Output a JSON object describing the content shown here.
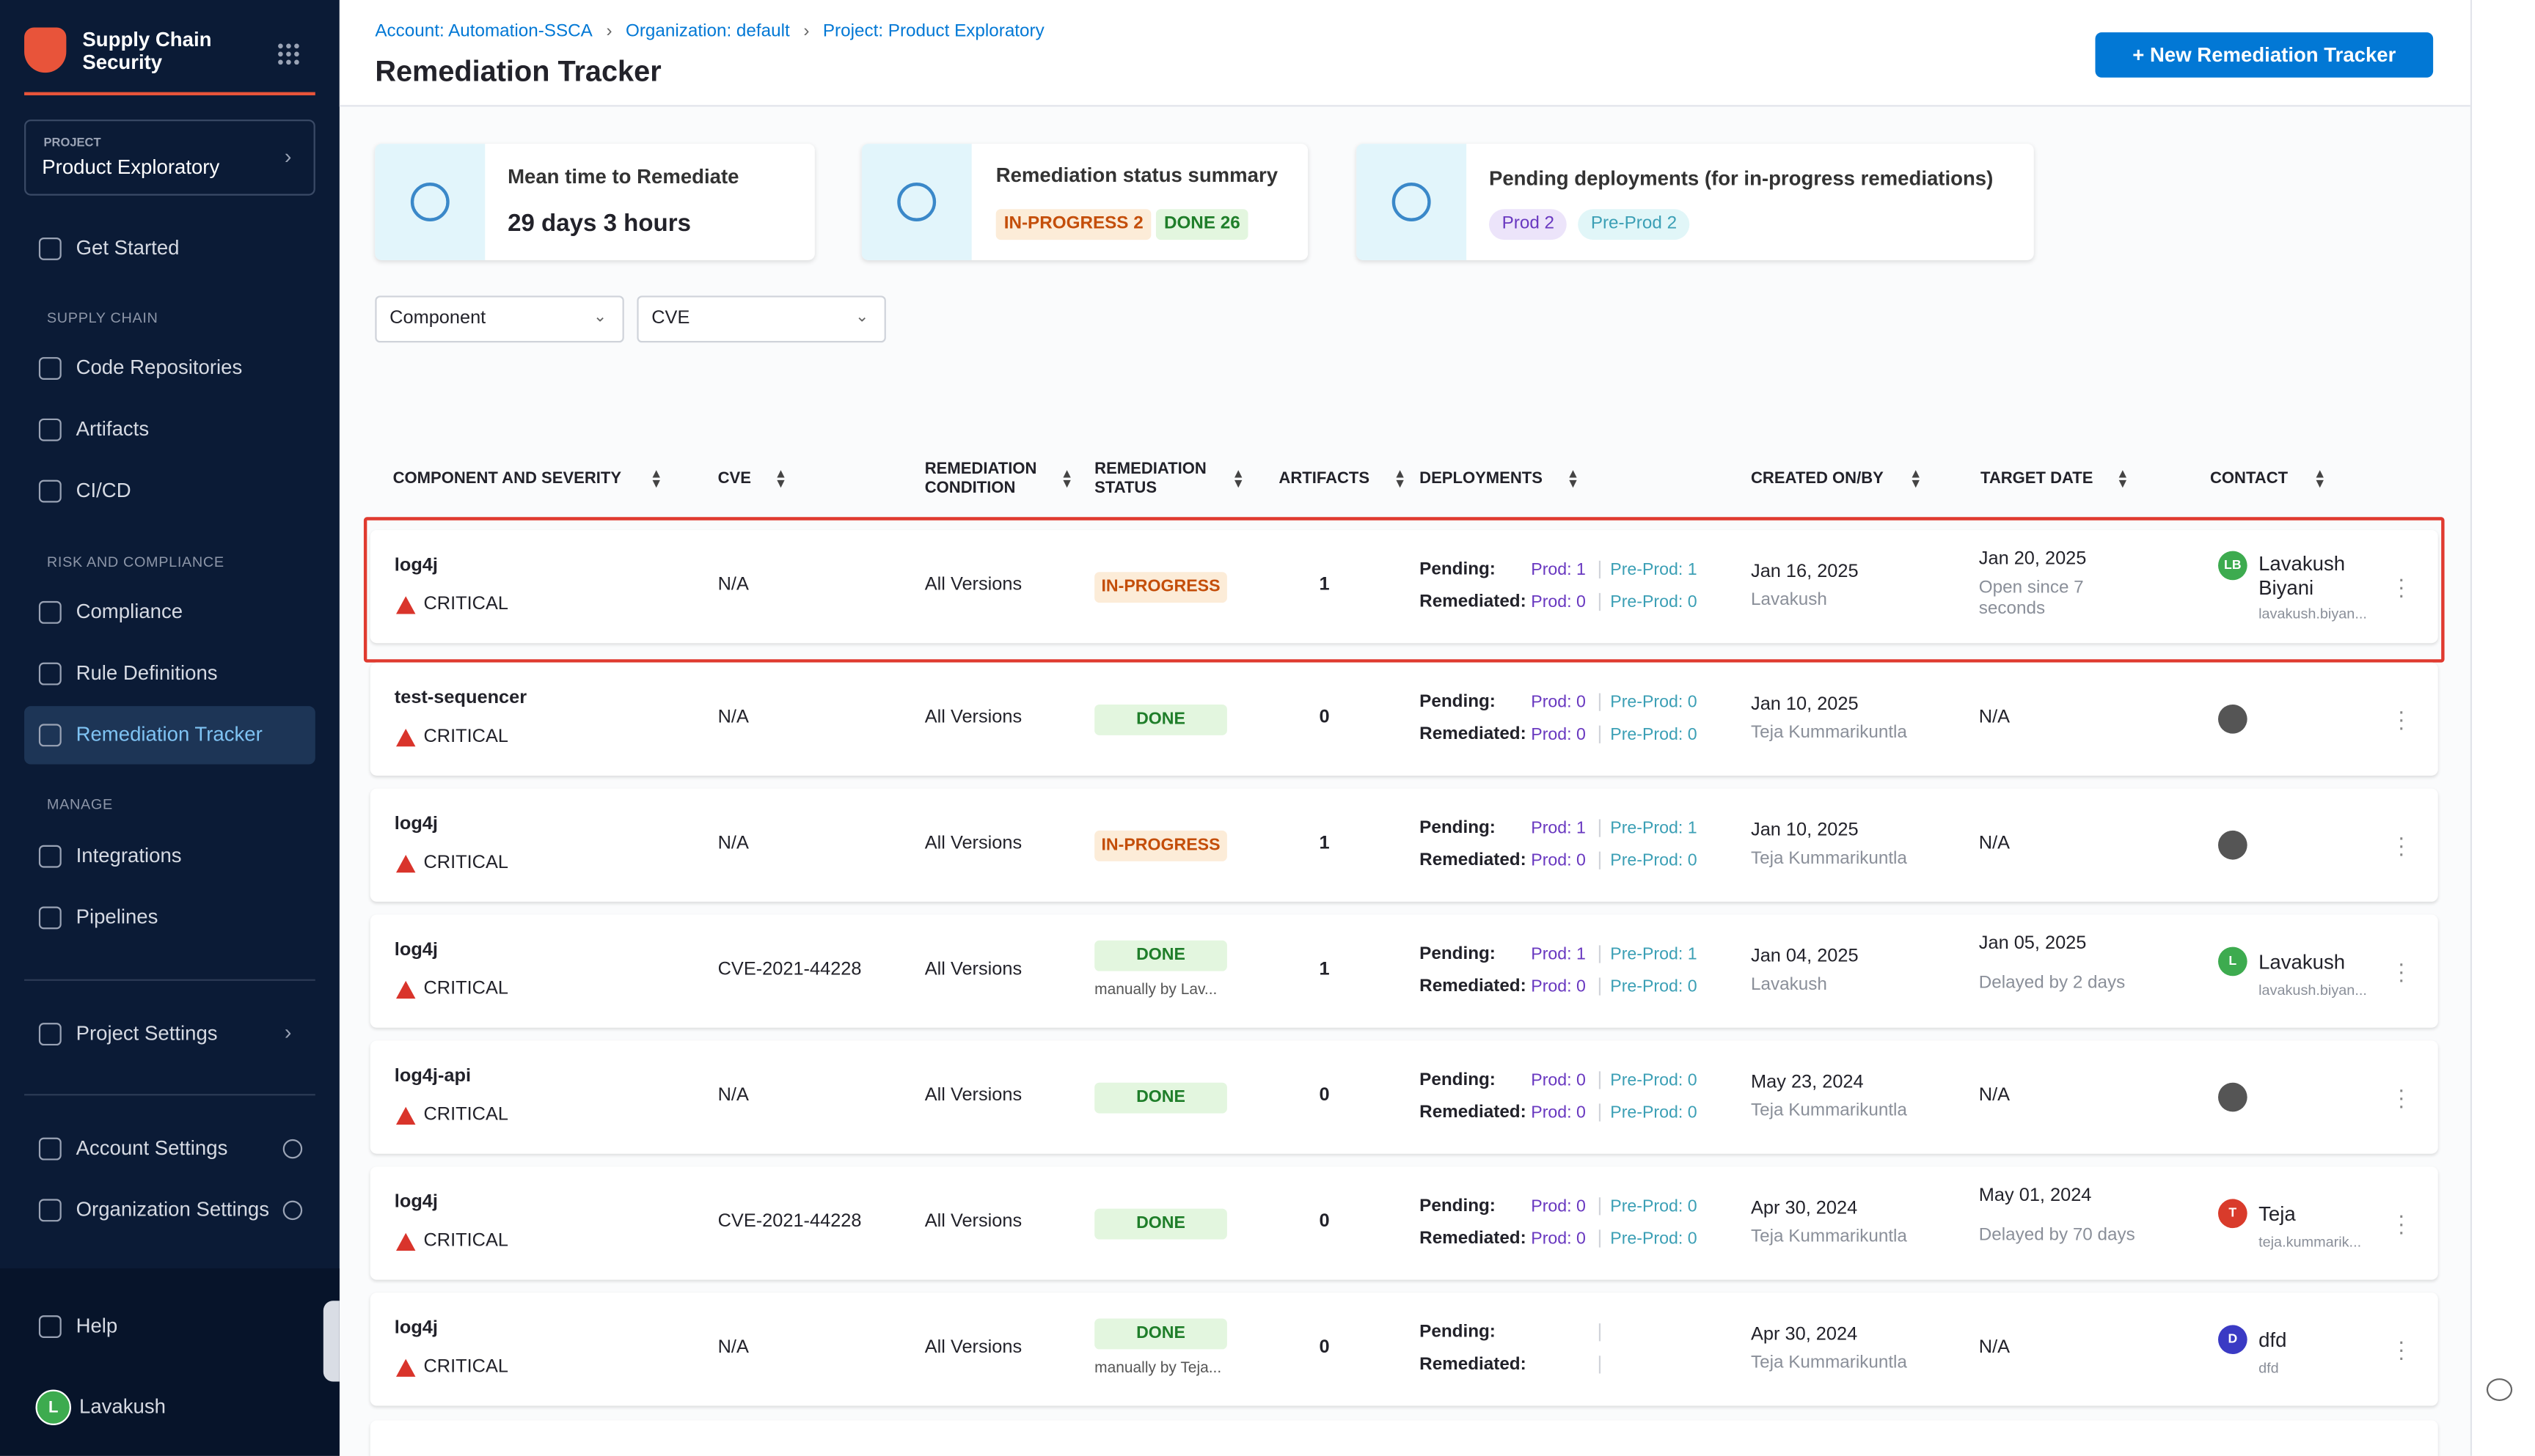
{
  "sidebar": {
    "brand": "Supply Chain Security",
    "project_label": "PROJECT",
    "project_name": "Product Exploratory",
    "nav": [
      {
        "text": "Get Started"
      },
      {
        "section": "SUPPLY CHAIN"
      },
      {
        "text": "Code Repositories"
      },
      {
        "text": "Artifacts"
      },
      {
        "text": "CI/CD"
      },
      {
        "section": "RISK AND COMPLIANCE"
      },
      {
        "text": "Compliance"
      },
      {
        "text": "Rule Definitions"
      },
      {
        "text": "Remediation Tracker",
        "active": true
      },
      {
        "section": "MANAGE"
      },
      {
        "text": "Integrations"
      },
      {
        "text": "Pipelines"
      },
      {
        "text": "Project Settings"
      },
      {
        "text": "Account Settings"
      },
      {
        "text": "Organization Settings"
      }
    ],
    "help": "Help",
    "user_initial": "L",
    "user": "Lavakush"
  },
  "header": {
    "breadcrumbs": [
      "Account: Automation-SSCA",
      "Organization: default",
      "Project: Product Exploratory"
    ],
    "title": "Remediation Tracker",
    "button": "+ New Remediation Tracker"
  },
  "cards": {
    "mean_time": {
      "title": "Mean time to Remediate",
      "value": "29 days 3 hours"
    },
    "status_summary": {
      "title": "Remediation status summary",
      "in_progress": "IN-PROGRESS 2",
      "done": "DONE 26"
    },
    "pending": {
      "title": "Pending deployments (for in-progress remediations)",
      "prod": "Prod 2",
      "preprod": "Pre-Prod 2"
    }
  },
  "filters": [
    "Component",
    "CVE"
  ],
  "table": {
    "headers": [
      "COMPONENT AND SEVERITY",
      "CVE",
      "REMEDIATION CONDITION",
      "REMEDIATION STATUS",
      "ARTIFACTS",
      "DEPLOYMENTS",
      "CREATED ON/BY",
      "TARGET DATE",
      "CONTACT"
    ],
    "pending_label": "Pending:",
    "remediated_label": "Remediated:",
    "rows": [
      {
        "component": "log4j",
        "severity": "CRITICAL",
        "cve": "N/A",
        "condition": "All Versions",
        "status": "IN-PROGRESS",
        "artifacts": "1",
        "pending_prod": "Prod: 1",
        "pending_preprod": "Pre-Prod: 1",
        "rem_prod": "Prod: 0",
        "rem_preprod": "Pre-Prod: 0",
        "created_date": "Jan 16, 2025",
        "created_by": "Lavakush",
        "target_date": "Jan 20, 2025",
        "target_note": "Open since 7 seconds",
        "contact_initials": "LB",
        "contact_name": "Lavakush Biyani",
        "contact_email": "lavakush.biyan...",
        "highlighted": true
      },
      {
        "component": "test-sequencer",
        "severity": "CRITICAL",
        "cve": "N/A",
        "condition": "All Versions",
        "status": "DONE",
        "artifacts": "0",
        "pending_prod": "Prod: 0",
        "pending_preprod": "Pre-Prod: 0",
        "rem_prod": "Prod: 0",
        "rem_preprod": "Pre-Prod: 0",
        "created_date": "Jan 10, 2025",
        "created_by": "Teja Kummarikuntla",
        "target_date": "N/A"
      },
      {
        "component": "log4j",
        "severity": "CRITICAL",
        "cve": "N/A",
        "condition": "All Versions",
        "status": "IN-PROGRESS",
        "artifacts": "1",
        "pending_prod": "Prod: 1",
        "pending_preprod": "Pre-Prod: 1",
        "rem_prod": "Prod: 0",
        "rem_preprod": "Pre-Prod: 0",
        "created_date": "Jan 10, 2025",
        "created_by": "Teja Kummarikuntla",
        "target_date": "N/A"
      },
      {
        "component": "log4j",
        "severity": "CRITICAL",
        "cve": "CVE-2021-44228",
        "condition": "All Versions",
        "status": "DONE",
        "status_note": "manually by Lav...",
        "artifacts": "1",
        "pending_prod": "Prod: 1",
        "pending_preprod": "Pre-Prod: 1",
        "rem_prod": "Prod: 0",
        "rem_preprod": "Pre-Prod: 0",
        "created_date": "Jan 04, 2025",
        "created_by": "Lavakush",
        "target_date": "Jan 05, 2025",
        "target_note": "Delayed by 2 days",
        "contact_initials": "L",
        "contact_name": "Lavakush",
        "contact_email": "lavakush.biyan..."
      },
      {
        "component": "log4j-api",
        "severity": "CRITICAL",
        "cve": "N/A",
        "condition": "All Versions",
        "status": "DONE",
        "artifacts": "0",
        "pending_prod": "Prod: 0",
        "pending_preprod": "Pre-Prod: 0",
        "rem_prod": "Prod: 0",
        "rem_preprod": "Pre-Prod: 0",
        "created_date": "May 23, 2024",
        "created_by": "Teja Kummarikuntla",
        "target_date": "N/A"
      },
      {
        "component": "log4j",
        "severity": "CRITICAL",
        "cve": "CVE-2021-44228",
        "condition": "All Versions",
        "status": "DONE",
        "artifacts": "0",
        "pending_prod": "Prod: 0",
        "pending_preprod": "Pre-Prod: 0",
        "rem_prod": "Prod: 0",
        "rem_preprod": "Pre-Prod: 0",
        "created_date": "Apr 30, 2024",
        "created_by": "Teja Kummarikuntla",
        "target_date": "May 01, 2024",
        "target_note": "Delayed by 70 days",
        "contact_initials": "T",
        "contact_name": "Teja",
        "contact_email": "teja.kummarik..."
      },
      {
        "component": "log4j",
        "severity": "CRITICAL",
        "cve": "N/A",
        "condition": "All Versions",
        "status": "DONE",
        "status_note": "manually by Teja...",
        "artifacts": "0",
        "created_date": "Apr 30, 2024",
        "created_by": "Teja Kummarikuntla",
        "target_date": "N/A",
        "contact_initials": "D",
        "contact_name": "dfd",
        "contact_email": "dfd"
      }
    ]
  }
}
